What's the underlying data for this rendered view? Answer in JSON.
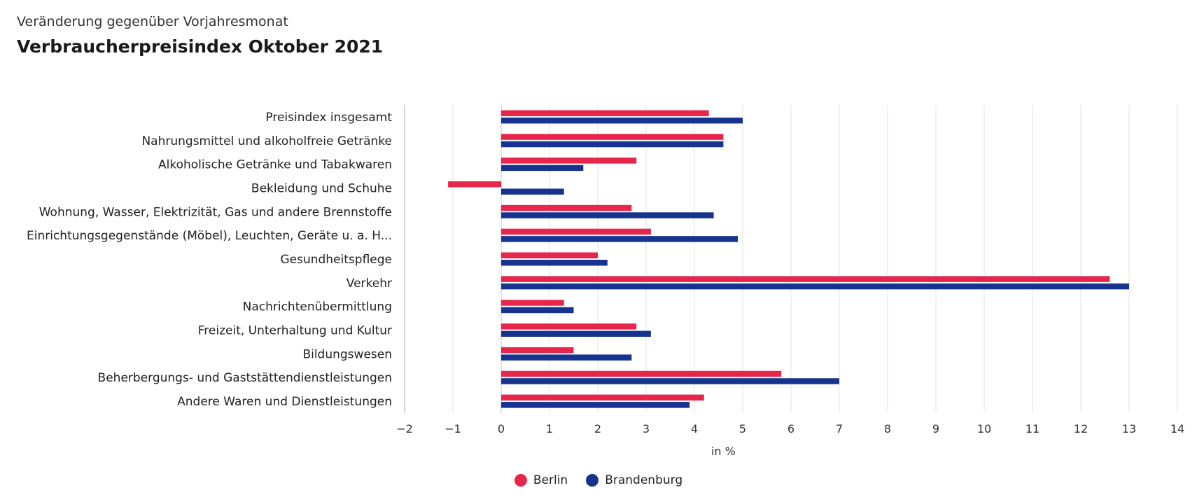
{
  "header": {
    "subtitle": "Veränderung gegenüber Vorjahresmonat",
    "title": "Verbraucherpreisindex Oktober 2021"
  },
  "chart_data": {
    "type": "bar",
    "orientation": "horizontal",
    "title": "Verbraucherpreisindex Oktober 2021",
    "subtitle": "Veränderung gegenüber Vorjahresmonat",
    "xlabel": "in %",
    "ylabel": "",
    "xlim": [
      -2,
      14
    ],
    "x_ticks": [
      "−2",
      "−1",
      "0",
      "1",
      "2",
      "3",
      "4",
      "5",
      "6",
      "7",
      "8",
      "9",
      "10",
      "11",
      "12",
      "13",
      "14"
    ],
    "x_tick_values": [
      -2,
      -1,
      0,
      1,
      2,
      3,
      4,
      5,
      6,
      7,
      8,
      9,
      10,
      11,
      12,
      13,
      14
    ],
    "grid": true,
    "legend_position": "bottom-center",
    "categories": [
      "Preisindex insgesamt",
      "Nahrungsmittel und alkoholfreie Getränke",
      "Alkoholische Getränke und Tabakwaren",
      "Bekleidung und Schuhe",
      "Wohnung, Wasser, Elektrizität, Gas und andere Brennstoffe",
      "Einrichtungsgegenstände (Möbel), Leuchten, Geräte u. a. H...",
      "Gesundheitspflege",
      "Verkehr",
      "Nachrichtenübermittlung",
      "Freizeit, Unterhaltung und Kultur",
      "Bildungswesen",
      "Beherbergungs- und Gaststättendienstleistungen",
      "Andere Waren und Dienstleistungen"
    ],
    "series": [
      {
        "name": "Berlin",
        "color": "#e8264b",
        "values": [
          4.3,
          4.6,
          2.8,
          -1.1,
          2.7,
          3.1,
          2.0,
          12.6,
          1.3,
          2.8,
          1.5,
          5.8,
          4.2
        ]
      },
      {
        "name": "Brandenburg",
        "color": "#16348f",
        "values": [
          5.0,
          4.6,
          1.7,
          1.3,
          4.4,
          4.9,
          2.2,
          13.0,
          1.5,
          3.1,
          2.7,
          7.0,
          3.9
        ]
      }
    ]
  }
}
